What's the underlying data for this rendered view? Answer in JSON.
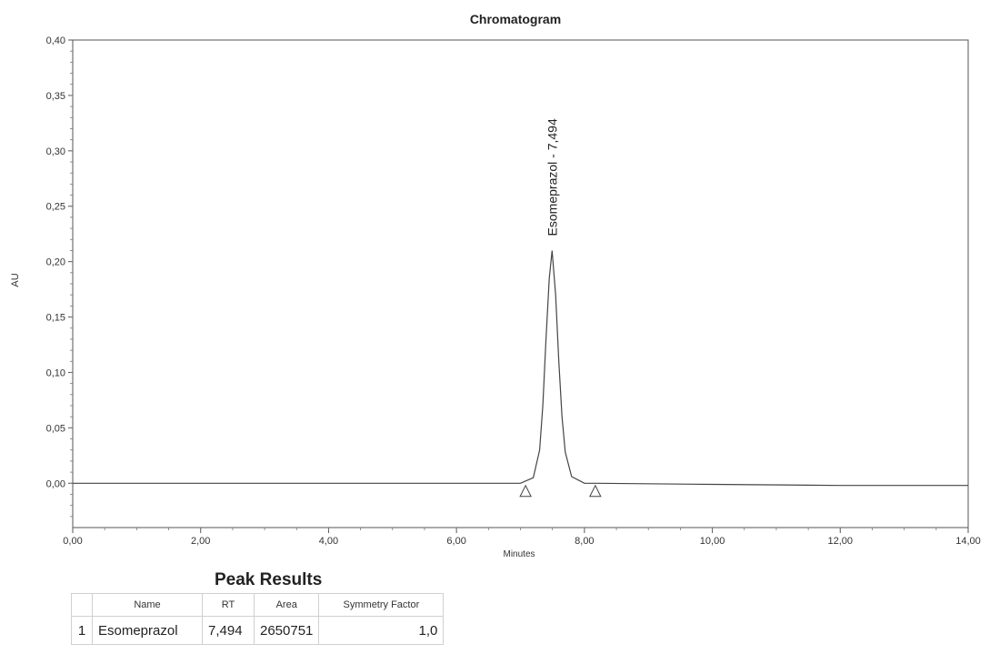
{
  "chart_data": {
    "type": "line",
    "title": "Chromatogram",
    "xlabel": "Minutes",
    "ylabel": "AU",
    "xlim": [
      0,
      14
    ],
    "ylim": [
      -0.04,
      0.4
    ],
    "x_ticks": [
      "0,00",
      "2,00",
      "4,00",
      "6,00",
      "8,00",
      "10,00",
      "12,00",
      "14,00"
    ],
    "y_ticks": [
      "0,00",
      "0,05",
      "0,10",
      "0,15",
      "0,20",
      "0,25",
      "0,30",
      "0,35",
      "0,40"
    ],
    "series": [
      {
        "x": [
          0.0,
          2.0,
          4.0,
          6.0,
          7.0,
          7.2,
          7.3,
          7.35,
          7.4,
          7.45,
          7.494,
          7.55,
          7.6,
          7.65,
          7.7,
          7.8,
          8.0,
          8.2,
          10.0,
          12.0,
          14.0
        ],
        "y": [
          0.0,
          0.0,
          0.0,
          0.0,
          0.0,
          0.005,
          0.03,
          0.07,
          0.13,
          0.185,
          0.21,
          0.17,
          0.11,
          0.06,
          0.028,
          0.006,
          0.0,
          0.0,
          -0.001,
          -0.002,
          -0.002
        ]
      }
    ],
    "peaks": [
      {
        "label": "Esomeprazol - 7,494",
        "x": 7.494,
        "y": 0.21
      }
    ],
    "integration_markers": [
      {
        "x": 7.08,
        "y": -0.007
      },
      {
        "x": 8.17,
        "y": -0.007
      }
    ],
    "grid": false
  },
  "results": {
    "title": "Peak Results",
    "headers": [
      "",
      "Name",
      "RT",
      "Area",
      "Symmetry Factor"
    ],
    "rows": [
      {
        "index": "1",
        "name": "Esomeprazol",
        "rt": "7,494",
        "area": "2650751",
        "symmetry": "1,0"
      }
    ]
  }
}
